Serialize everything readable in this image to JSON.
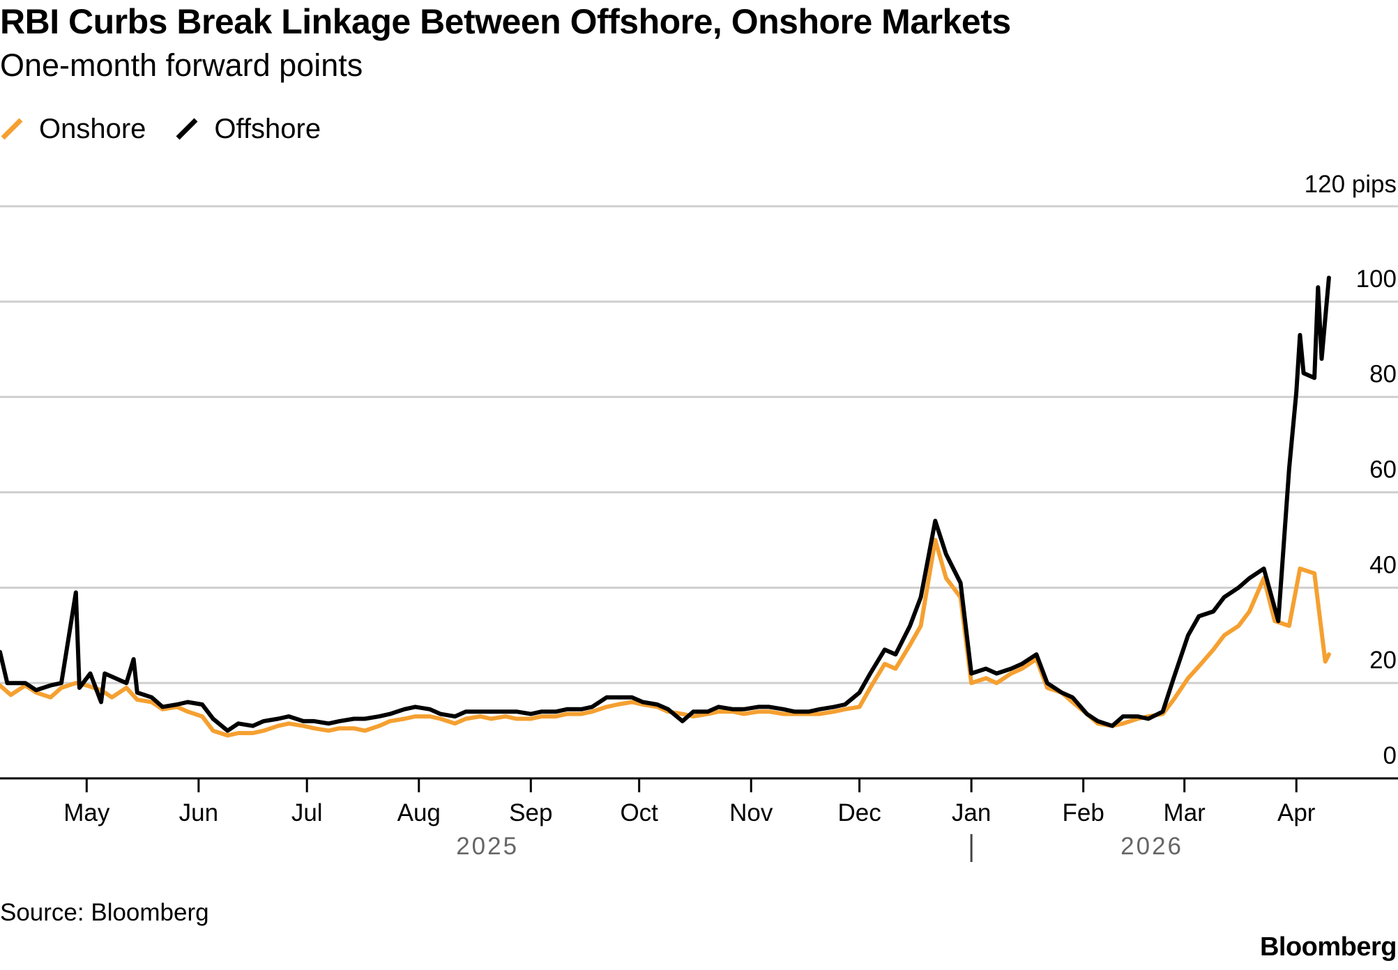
{
  "chart_data": {
    "type": "line",
    "title": "RBI Curbs Break Linkage Between Offshore, Onshore Markets",
    "subtitle": "One-month forward points",
    "yunit_label": "120 pips",
    "ylim": [
      0,
      120
    ],
    "yticks": [
      0,
      20,
      40,
      60,
      80,
      100,
      120
    ],
    "ytick_labels": [
      "0",
      "20",
      "40",
      "60",
      "80",
      "100",
      "120 pips"
    ],
    "xlim": [
      "2025-04-07",
      "2026-04-22"
    ],
    "xticks": [
      {
        "date": "2025-05-01",
        "label": "May"
      },
      {
        "date": "2025-06-01",
        "label": "Jun"
      },
      {
        "date": "2025-07-01",
        "label": "Jul"
      },
      {
        "date": "2025-08-01",
        "label": "Aug"
      },
      {
        "date": "2025-09-01",
        "label": "Sep"
      },
      {
        "date": "2025-10-01",
        "label": "Oct"
      },
      {
        "date": "2025-11-01",
        "label": "Nov"
      },
      {
        "date": "2025-12-01",
        "label": "Dec"
      },
      {
        "date": "2026-01-01",
        "label": "Jan"
      },
      {
        "date": "2026-02-01",
        "label": "Feb"
      },
      {
        "date": "2026-03-01",
        "label": "Mar"
      },
      {
        "date": "2026-04-01",
        "label": "Apr"
      }
    ],
    "year_labels": [
      {
        "label": "2025",
        "center": "2025-08-20"
      },
      {
        "label": "2026",
        "center": "2026-02-20"
      }
    ],
    "year_divider": "2026-01-01",
    "legend_position": "top-left",
    "series": [
      {
        "name": "Onshore",
        "color": "#f5a031",
        "points": [
          [
            "2025-04-07",
            19.5
          ],
          [
            "2025-04-10",
            17.5
          ],
          [
            "2025-04-14",
            19.5
          ],
          [
            "2025-04-17",
            18
          ],
          [
            "2025-04-21",
            17
          ],
          [
            "2025-04-24",
            19
          ],
          [
            "2025-04-28",
            20
          ],
          [
            "2025-05-01",
            19.5
          ],
          [
            "2025-05-05",
            18.5
          ],
          [
            "2025-05-08",
            17
          ],
          [
            "2025-05-12",
            19
          ],
          [
            "2025-05-15",
            16.5
          ],
          [
            "2025-05-19",
            16
          ],
          [
            "2025-05-22",
            14.5
          ],
          [
            "2025-05-26",
            15
          ],
          [
            "2025-05-29",
            14
          ],
          [
            "2025-06-02",
            13
          ],
          [
            "2025-06-05",
            10
          ],
          [
            "2025-06-09",
            9
          ],
          [
            "2025-06-12",
            9.5
          ],
          [
            "2025-06-16",
            9.5
          ],
          [
            "2025-06-19",
            10
          ],
          [
            "2025-06-23",
            11
          ],
          [
            "2025-06-26",
            11.5
          ],
          [
            "2025-06-30",
            11
          ],
          [
            "2025-07-03",
            10.5
          ],
          [
            "2025-07-07",
            10
          ],
          [
            "2025-07-10",
            10.5
          ],
          [
            "2025-07-14",
            10.5
          ],
          [
            "2025-07-17",
            10
          ],
          [
            "2025-07-21",
            11
          ],
          [
            "2025-07-24",
            12
          ],
          [
            "2025-07-28",
            12.5
          ],
          [
            "2025-07-31",
            13
          ],
          [
            "2025-08-04",
            13
          ],
          [
            "2025-08-07",
            12.5
          ],
          [
            "2025-08-11",
            11.5
          ],
          [
            "2025-08-14",
            12.5
          ],
          [
            "2025-08-18",
            13
          ],
          [
            "2025-08-21",
            12.5
          ],
          [
            "2025-08-25",
            13
          ],
          [
            "2025-08-28",
            12.5
          ],
          [
            "2025-09-01",
            12.5
          ],
          [
            "2025-09-04",
            13
          ],
          [
            "2025-09-08",
            13
          ],
          [
            "2025-09-11",
            13.5
          ],
          [
            "2025-09-15",
            13.5
          ],
          [
            "2025-09-18",
            14
          ],
          [
            "2025-09-22",
            15
          ],
          [
            "2025-09-25",
            15.5
          ],
          [
            "2025-09-29",
            16
          ],
          [
            "2025-10-02",
            15.5
          ],
          [
            "2025-10-06",
            15
          ],
          [
            "2025-10-09",
            14
          ],
          [
            "2025-10-13",
            13.5
          ],
          [
            "2025-10-16",
            13
          ],
          [
            "2025-10-20",
            13.5
          ],
          [
            "2025-10-23",
            14
          ],
          [
            "2025-10-27",
            14
          ],
          [
            "2025-10-30",
            13.5
          ],
          [
            "2025-11-03",
            14
          ],
          [
            "2025-11-06",
            14
          ],
          [
            "2025-11-10",
            13.5
          ],
          [
            "2025-11-13",
            13.5
          ],
          [
            "2025-11-17",
            13.5
          ],
          [
            "2025-11-20",
            13.5
          ],
          [
            "2025-11-24",
            14
          ],
          [
            "2025-11-27",
            14.5
          ],
          [
            "2025-12-01",
            15
          ],
          [
            "2025-12-04",
            19
          ],
          [
            "2025-12-08",
            24
          ],
          [
            "2025-12-11",
            23
          ],
          [
            "2025-12-15",
            28
          ],
          [
            "2025-12-18",
            32
          ],
          [
            "2025-12-22",
            50
          ],
          [
            "2025-12-25",
            42
          ],
          [
            "2025-12-29",
            38
          ],
          [
            "2026-01-01",
            20
          ],
          [
            "2026-01-05",
            21
          ],
          [
            "2026-01-08",
            20
          ],
          [
            "2026-01-12",
            22
          ],
          [
            "2026-01-15",
            23
          ],
          [
            "2026-01-19",
            25
          ],
          [
            "2026-01-22",
            19
          ],
          [
            "2026-01-26",
            18
          ],
          [
            "2026-01-29",
            16
          ],
          [
            "2026-02-02",
            13.5
          ],
          [
            "2026-02-05",
            11.5
          ],
          [
            "2026-02-09",
            11
          ],
          [
            "2026-02-12",
            11.5
          ],
          [
            "2026-02-16",
            12.5
          ],
          [
            "2026-02-19",
            13
          ],
          [
            "2026-02-23",
            13.5
          ],
          [
            "2026-02-26",
            16.5
          ],
          [
            "2026-03-02",
            21
          ],
          [
            "2026-03-05",
            23.5
          ],
          [
            "2026-03-09",
            27
          ],
          [
            "2026-03-12",
            30
          ],
          [
            "2026-03-16",
            32
          ],
          [
            "2026-03-19",
            35
          ],
          [
            "2026-03-23",
            42
          ],
          [
            "2026-03-26",
            33
          ],
          [
            "2026-03-30",
            32
          ],
          [
            "2026-04-02",
            44
          ],
          [
            "2026-04-06",
            43
          ],
          [
            "2026-04-09",
            24.5
          ],
          [
            "2026-04-10",
            26
          ]
        ]
      },
      {
        "name": "Offshore",
        "color": "#000000",
        "points": [
          [
            "2025-04-07",
            26.5
          ],
          [
            "2025-04-09",
            20
          ],
          [
            "2025-04-14",
            20
          ],
          [
            "2025-04-17",
            18.5
          ],
          [
            "2025-04-21",
            19.5
          ],
          [
            "2025-04-24",
            20
          ],
          [
            "2025-04-28",
            39
          ],
          [
            "2025-04-29",
            19
          ],
          [
            "2025-05-02",
            22
          ],
          [
            "2025-05-05",
            16
          ],
          [
            "2025-05-06",
            22
          ],
          [
            "2025-05-12",
            20
          ],
          [
            "2025-05-14",
            25
          ],
          [
            "2025-05-15",
            18
          ],
          [
            "2025-05-19",
            17
          ],
          [
            "2025-05-22",
            15
          ],
          [
            "2025-05-26",
            15.5
          ],
          [
            "2025-05-29",
            16
          ],
          [
            "2025-06-02",
            15.5
          ],
          [
            "2025-06-05",
            12.5
          ],
          [
            "2025-06-09",
            10
          ],
          [
            "2025-06-12",
            11.5
          ],
          [
            "2025-06-16",
            11
          ],
          [
            "2025-06-19",
            12
          ],
          [
            "2025-06-23",
            12.5
          ],
          [
            "2025-06-26",
            13
          ],
          [
            "2025-06-30",
            12
          ],
          [
            "2025-07-03",
            12
          ],
          [
            "2025-07-07",
            11.5
          ],
          [
            "2025-07-10",
            12
          ],
          [
            "2025-07-14",
            12.5
          ],
          [
            "2025-07-17",
            12.5
          ],
          [
            "2025-07-21",
            13
          ],
          [
            "2025-07-24",
            13.5
          ],
          [
            "2025-07-28",
            14.5
          ],
          [
            "2025-07-31",
            15
          ],
          [
            "2025-08-04",
            14.5
          ],
          [
            "2025-08-07",
            13.5
          ],
          [
            "2025-08-11",
            13
          ],
          [
            "2025-08-14",
            14
          ],
          [
            "2025-08-18",
            14
          ],
          [
            "2025-08-21",
            14
          ],
          [
            "2025-08-25",
            14
          ],
          [
            "2025-08-28",
            14
          ],
          [
            "2025-09-01",
            13.5
          ],
          [
            "2025-09-04",
            14
          ],
          [
            "2025-09-08",
            14
          ],
          [
            "2025-09-11",
            14.5
          ],
          [
            "2025-09-15",
            14.5
          ],
          [
            "2025-09-18",
            15
          ],
          [
            "2025-09-22",
            17
          ],
          [
            "2025-09-25",
            17
          ],
          [
            "2025-09-29",
            17
          ],
          [
            "2025-10-02",
            16
          ],
          [
            "2025-10-06",
            15.5
          ],
          [
            "2025-10-09",
            14.5
          ],
          [
            "2025-10-13",
            12
          ],
          [
            "2025-10-16",
            14
          ],
          [
            "2025-10-20",
            14
          ],
          [
            "2025-10-23",
            15
          ],
          [
            "2025-10-27",
            14.5
          ],
          [
            "2025-10-30",
            14.5
          ],
          [
            "2025-11-03",
            15
          ],
          [
            "2025-11-06",
            15
          ],
          [
            "2025-11-10",
            14.5
          ],
          [
            "2025-11-13",
            14
          ],
          [
            "2025-11-17",
            14
          ],
          [
            "2025-11-20",
            14.5
          ],
          [
            "2025-11-24",
            15
          ],
          [
            "2025-11-27",
            15.5
          ],
          [
            "2025-12-01",
            18
          ],
          [
            "2025-12-04",
            22
          ],
          [
            "2025-12-08",
            27
          ],
          [
            "2025-12-11",
            26
          ],
          [
            "2025-12-15",
            32
          ],
          [
            "2025-12-18",
            38
          ],
          [
            "2025-12-22",
            54
          ],
          [
            "2025-12-25",
            47
          ],
          [
            "2025-12-29",
            41
          ],
          [
            "2026-01-01",
            22
          ],
          [
            "2026-01-05",
            23
          ],
          [
            "2026-01-08",
            22
          ],
          [
            "2026-01-12",
            23
          ],
          [
            "2026-01-15",
            24
          ],
          [
            "2026-01-19",
            26
          ],
          [
            "2026-01-22",
            20
          ],
          [
            "2026-01-26",
            18
          ],
          [
            "2026-01-29",
            17
          ],
          [
            "2026-02-02",
            13.5
          ],
          [
            "2026-02-05",
            12
          ],
          [
            "2026-02-09",
            11
          ],
          [
            "2026-02-12",
            13
          ],
          [
            "2026-02-16",
            13
          ],
          [
            "2026-02-19",
            12.5
          ],
          [
            "2026-02-23",
            14
          ],
          [
            "2026-02-26",
            21
          ],
          [
            "2026-03-02",
            30
          ],
          [
            "2026-03-05",
            34
          ],
          [
            "2026-03-09",
            35
          ],
          [
            "2026-03-12",
            38
          ],
          [
            "2026-03-16",
            40
          ],
          [
            "2026-03-19",
            42
          ],
          [
            "2026-03-23",
            44
          ],
          [
            "2026-03-27",
            33
          ],
          [
            "2026-03-30",
            65
          ],
          [
            "2026-04-01",
            81
          ],
          [
            "2026-04-02",
            93
          ],
          [
            "2026-04-03",
            85
          ],
          [
            "2026-04-06",
            84
          ],
          [
            "2026-04-07",
            103
          ],
          [
            "2026-04-08",
            88
          ],
          [
            "2026-04-10",
            105
          ]
        ]
      }
    ]
  },
  "footer": {
    "source": "Source: Bloomberg",
    "brand": "Bloomberg"
  }
}
